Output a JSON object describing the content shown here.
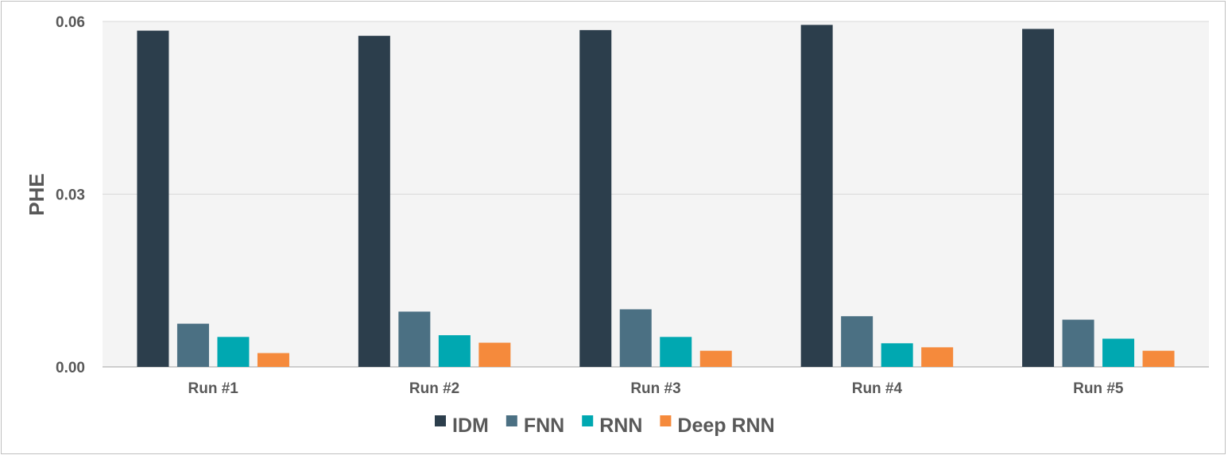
{
  "chart_data": {
    "type": "bar",
    "title": "",
    "xlabel": "",
    "ylabel": "PHE",
    "ylim": [
      0,
      0.06
    ],
    "yticks": [
      {
        "value": 0,
        "label": "0.00"
      },
      {
        "value": 0.03,
        "label": "0.03"
      },
      {
        "value": 0.06,
        "label": "0.06"
      }
    ],
    "grid": true,
    "legend_position": "bottom",
    "categories": [
      "Run #1",
      "Run #2",
      "Run #3",
      "Run #4",
      "Run #5"
    ],
    "series": [
      {
        "name": "IDM",
        "color": "#2c3e4c",
        "values": [
          0.0584,
          0.0575,
          0.0585,
          0.0594,
          0.0587
        ]
      },
      {
        "name": "FNN",
        "color": "#4b7083",
        "values": [
          0.0075,
          0.0096,
          0.01,
          0.0088,
          0.0082
        ]
      },
      {
        "name": "RNN",
        "color": "#00a8b1",
        "values": [
          0.0052,
          0.0055,
          0.0052,
          0.0041,
          0.0049
        ]
      },
      {
        "name": "Deep RNN",
        "color": "#f58a3c",
        "values": [
          0.0024,
          0.0042,
          0.0028,
          0.0034,
          0.0028
        ]
      }
    ]
  }
}
